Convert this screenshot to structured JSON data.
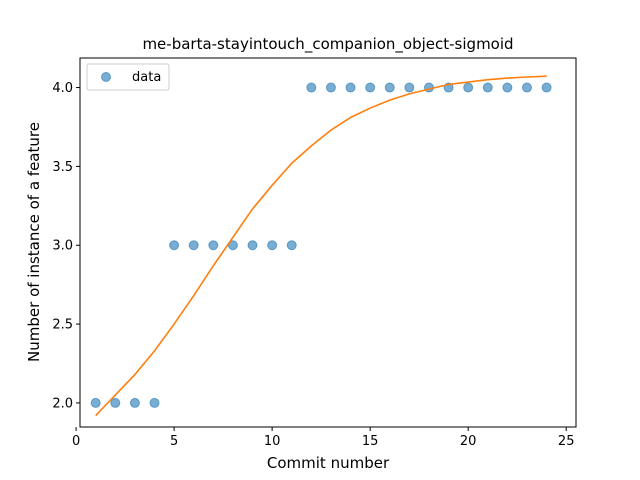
{
  "chart_data": {
    "type": "scatter",
    "title": "me-barta-stayintouch_companion_object-sigmoid",
    "xlabel": "Commit number",
    "ylabel": "Number of instance of a feature",
    "xlim": [
      0.2,
      25.5
    ],
    "ylim": [
      1.8474,
      4.1874
    ],
    "xticks": [
      0,
      5,
      10,
      15,
      20,
      25
    ],
    "yticks": [
      2.0,
      2.5,
      3.0,
      3.5,
      4.0
    ],
    "ytick_labels": [
      "2.0",
      "2.5",
      "3.0",
      "3.5",
      "4.0"
    ],
    "grid": false,
    "legend": {
      "position": "upper-left",
      "entries": [
        "data"
      ]
    },
    "series": [
      {
        "name": "data",
        "kind": "scatter",
        "color": "#1f77b4",
        "x": [
          1,
          2,
          3,
          4,
          5,
          6,
          7,
          8,
          9,
          10,
          11,
          12,
          13,
          14,
          15,
          16,
          17,
          18,
          19,
          20,
          21,
          22,
          23,
          24
        ],
        "y": [
          2,
          2,
          2,
          2,
          3,
          3,
          3,
          3,
          3,
          3,
          3,
          4,
          4,
          4,
          4,
          4,
          4,
          4,
          4,
          4,
          4,
          4,
          4,
          4
        ]
      },
      {
        "kind": "line",
        "color": "#ff7f0e",
        "x": [
          1,
          2,
          3,
          4,
          5,
          6,
          7,
          8,
          9,
          10,
          11,
          12,
          13,
          14,
          15,
          16,
          17,
          18,
          19,
          20,
          21,
          22,
          23,
          24
        ],
        "y": [
          1.92,
          2.05,
          2.18,
          2.33,
          2.5,
          2.68,
          2.87,
          3.05,
          3.23,
          3.38,
          3.52,
          3.63,
          3.73,
          3.81,
          3.87,
          3.92,
          3.96,
          3.99,
          4.02,
          4.035,
          4.05,
          4.06,
          4.067,
          4.072
        ]
      }
    ]
  }
}
